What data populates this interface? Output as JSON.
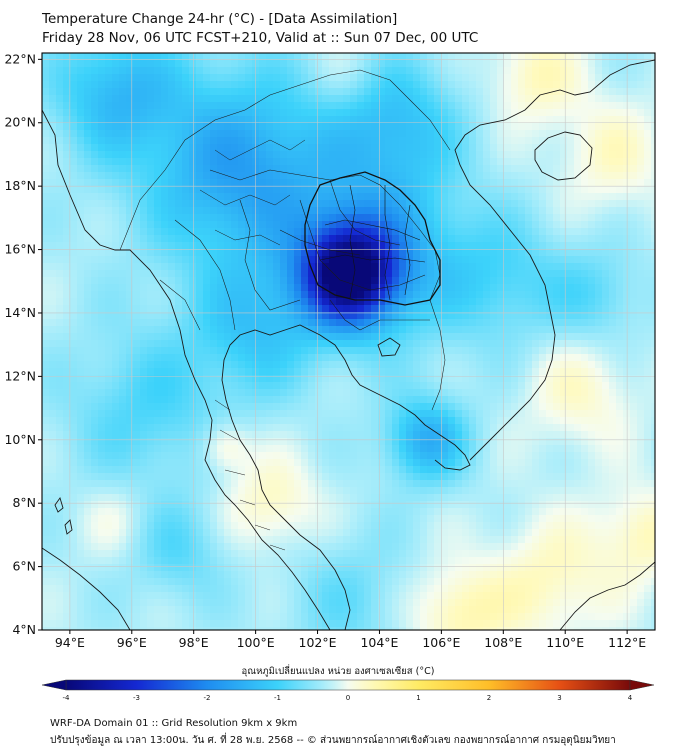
{
  "header": {
    "line1": "Temperature Change 24-hr (°C) - [Data Assimilation]",
    "line2": "Friday 28 Nov, 06 UTC FCST+210, Valid at :: Sun 07 Dec, 00 UTC"
  },
  "axes": {
    "lat_labels": [
      "22°N",
      "20°N",
      "18°N",
      "16°N",
      "14°N",
      "12°N",
      "10°N",
      "8°N",
      "6°N",
      "4°N"
    ],
    "lat_values": [
      22,
      20,
      18,
      16,
      14,
      12,
      10,
      8,
      6,
      4
    ],
    "lon_labels": [
      "94°E",
      "96°E",
      "98°E",
      "100°E",
      "102°E",
      "104°E",
      "106°E",
      "108°E",
      "110°E",
      "112°E"
    ],
    "lon_values": [
      94,
      96,
      98,
      100,
      102,
      104,
      106,
      108,
      110,
      112
    ],
    "lon_range": [
      93.1,
      112.9
    ],
    "lat_range": [
      4.0,
      22.2
    ]
  },
  "colorbar": {
    "label": "อุณหภูมิเปลี่ยนแปลง หน่วย องศาเซลเซียส (°C)",
    "ticks": [
      "-4",
      "-3",
      "-2",
      "-1",
      "0",
      "1",
      "2",
      "3",
      "4"
    ],
    "tick_values": [
      -4,
      -3,
      -2,
      -1,
      0,
      1,
      2,
      3,
      4
    ],
    "range": [
      -4,
      4
    ]
  },
  "footer": {
    "line1": "WRF-DA Domain 01 :: Grid Resolution 9km x 9km",
    "line2": "ปรับปรุงข้อมูล ณ เวลา 13:00น. วัน ศ. ที่ 28 พ.ย. 2568 -- © ส่วนพยากรณ์อากาศเชิงตัวเลข กองพยากรณ์อากาศ กรมอุตุนิยมวิทยา"
  },
  "field": {
    "background_value": -0.3,
    "anomalies": [
      {
        "lon": 103.0,
        "lat": 15.2,
        "value": -3.4,
        "spread_deg": 1.5
      },
      {
        "lon": 104.0,
        "lat": 16.0,
        "value": -1.2,
        "spread_deg": 2.6
      },
      {
        "lon": 99.5,
        "lat": 18.5,
        "value": -1.4,
        "spread_deg": 3.0
      },
      {
        "lon": 95.5,
        "lat": 21.0,
        "value": -1.0,
        "spread_deg": 2.0
      },
      {
        "lon": 104.5,
        "lat": 20.0,
        "value": -0.9,
        "spread_deg": 2.0
      },
      {
        "lon": 105.5,
        "lat": 10.0,
        "value": -1.2,
        "spread_deg": 1.3
      },
      {
        "lon": 96.5,
        "lat": 11.0,
        "value": -0.6,
        "spread_deg": 2.5
      },
      {
        "lon": 100.0,
        "lat": 13.5,
        "value": -0.8,
        "spread_deg": 2.0
      },
      {
        "lon": 97.5,
        "lat": 6.5,
        "value": -0.5,
        "spread_deg": 1.5
      },
      {
        "lon": 103.0,
        "lat": 5.0,
        "value": -0.4,
        "spread_deg": 2.0
      },
      {
        "lon": 108.0,
        "lat": 15.0,
        "value": -0.6,
        "spread_deg": 2.0
      },
      {
        "lon": 111.0,
        "lat": 14.5,
        "value": -0.5,
        "spread_deg": 1.5
      },
      {
        "lon": 109.0,
        "lat": 21.5,
        "value": 0.6,
        "spread_deg": 1.5
      },
      {
        "lon": 111.5,
        "lat": 19.0,
        "value": 0.5,
        "spread_deg": 1.8
      },
      {
        "lon": 110.5,
        "lat": 11.5,
        "value": 0.5,
        "spread_deg": 1.8
      },
      {
        "lon": 109.5,
        "lat": 5.5,
        "value": 0.6,
        "spread_deg": 2.0
      },
      {
        "lon": 106.5,
        "lat": 4.5,
        "value": 0.7,
        "spread_deg": 1.5
      },
      {
        "lon": 100.5,
        "lat": 8.0,
        "value": 0.6,
        "spread_deg": 1.5
      },
      {
        "lon": 99.0,
        "lat": 9.8,
        "value": 0.6,
        "spread_deg": 0.8
      },
      {
        "lon": 95.5,
        "lat": 7.5,
        "value": 0.3,
        "spread_deg": 1.2
      },
      {
        "lon": 103.0,
        "lat": 21.5,
        "value": 0.3,
        "spread_deg": 1.2
      },
      {
        "lon": 112.5,
        "lat": 7.0,
        "value": 0.6,
        "spread_deg": 1.5
      }
    ]
  },
  "colors": {
    "frame": "#000000",
    "grid": "#c8c8c8",
    "coast": "#1a1a1a"
  }
}
